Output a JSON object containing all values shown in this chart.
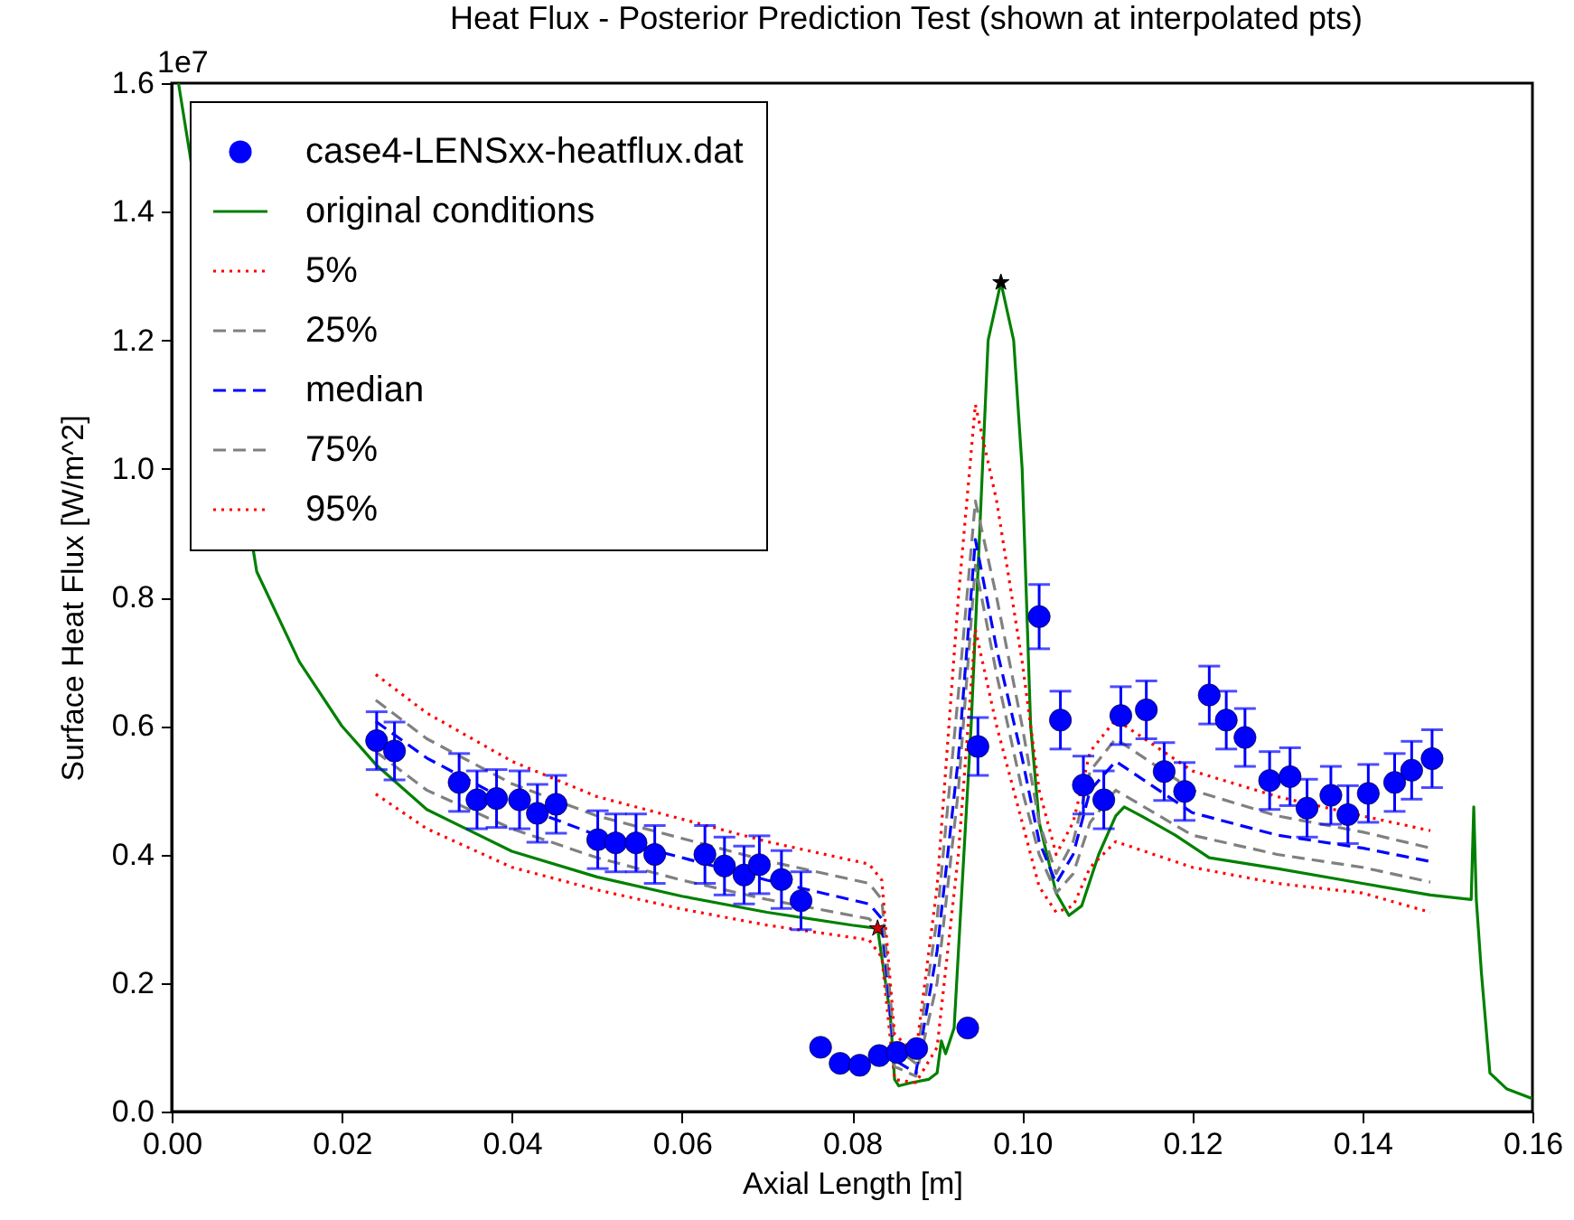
{
  "chart_data": {
    "type": "line",
    "title": "Heat Flux - Posterior Prediction Test (shown at interpolated pts)",
    "xlabel": "Axial Length [m]",
    "ylabel": "Surface Heat Flux [W/m^2]",
    "annotations": [
      "1e7"
    ],
    "xlim": [
      0,
      0.16
    ],
    "ylim": [
      0,
      1.6
    ],
    "xticks": [
      {
        "value": 0,
        "label": "0.00"
      },
      {
        "value": 0.02,
        "label": "0.02"
      },
      {
        "value": 0.04,
        "label": "0.04"
      },
      {
        "value": 0.06,
        "label": "0.06"
      },
      {
        "value": 0.08,
        "label": "0.08"
      },
      {
        "value": 0.1,
        "label": "0.10"
      },
      {
        "value": 0.12,
        "label": "0.12"
      },
      {
        "value": 0.14,
        "label": "0.14"
      },
      {
        "value": 0.16,
        "label": "0.16"
      }
    ],
    "yticks": [
      {
        "value": 0,
        "label": "0.0"
      },
      {
        "value": 0.2,
        "label": "0.2"
      },
      {
        "value": 0.4,
        "label": "0.4"
      },
      {
        "value": 0.6,
        "label": "0.6"
      },
      {
        "value": 0.8,
        "label": "0.8"
      },
      {
        "value": 1,
        "label": "1.0"
      },
      {
        "value": 1.2,
        "label": "1.2"
      },
      {
        "value": 1.4,
        "label": "1.4"
      },
      {
        "value": 1.6,
        "label": "1.6"
      }
    ],
    "grid": false,
    "legend": "top left",
    "series": [
      {
        "name": "case4-LENSxx-heatflux.dat",
        "type": "scatter",
        "marker": "circle",
        "color": "#0000ff",
        "x": [
          0.0241,
          0.0262,
          0.0338,
          0.0359,
          0.0382,
          0.0409,
          0.043,
          0.0452,
          0.0501,
          0.0522,
          0.0546,
          0.0568,
          0.0627,
          0.065,
          0.0673,
          0.0691,
          0.0717,
          0.074,
          0.0763,
          0.0786,
          0.0809,
          0.0832,
          0.0853,
          0.0876,
          0.0936,
          0.0948,
          0.102,
          0.1045,
          0.1072,
          0.1096,
          0.1116,
          0.1146,
          0.1167,
          0.1191,
          0.122,
          0.124,
          0.1262,
          0.1291,
          0.1315,
          0.1335,
          0.1363,
          0.1383,
          0.1407,
          0.1438,
          0.1458,
          0.1482
        ],
        "values": [
          0.577,
          0.561,
          0.512,
          0.485,
          0.487,
          0.485,
          0.464,
          0.478,
          0.423,
          0.418,
          0.418,
          0.4,
          0.4,
          0.382,
          0.368,
          0.384,
          0.361,
          0.328,
          0.1,
          0.075,
          0.072,
          0.087,
          0.092,
          0.098,
          0.13,
          0.568,
          0.77,
          0.609,
          0.508,
          0.485,
          0.616,
          0.625,
          0.529,
          0.498,
          0.648,
          0.609,
          0.582,
          0.515,
          0.521,
          0.472,
          0.492,
          0.462,
          0.495,
          0.512,
          0.531,
          0.549
        ],
        "errors": [
          0.045,
          0.045,
          0.045,
          0.045,
          0.045,
          0.045,
          0.045,
          0.045,
          0.045,
          0.045,
          0.045,
          0.045,
          0.045,
          0.045,
          0.045,
          0.045,
          0.045,
          0.045,
          null,
          null,
          null,
          null,
          null,
          null,
          null,
          0.045,
          0.05,
          0.045,
          0.045,
          0.045,
          0.045,
          0.045,
          0.045,
          0.045,
          0.045,
          0.045,
          0.045,
          0.045,
          0.045,
          0.045,
          0.045,
          0.045,
          0.045,
          0.045,
          0.045,
          0.045
        ]
      },
      {
        "name": "original conditions",
        "type": "line",
        "line_style": "solid",
        "color": "#008000",
        "x": [
          0.0008,
          0.01,
          0.015,
          0.02,
          0.024,
          0.03,
          0.04,
          0.05,
          0.06,
          0.07,
          0.08,
          0.083,
          0.0845,
          0.085,
          0.0855,
          0.087,
          0.089,
          0.09,
          0.0905,
          0.091,
          0.092,
          0.094,
          0.095,
          0.096,
          0.0975,
          0.099,
          0.1,
          0.101,
          0.102,
          0.104,
          0.1055,
          0.107,
          0.109,
          0.111,
          0.112,
          0.114,
          0.118,
          0.122,
          0.13,
          0.14,
          0.148,
          0.1528,
          0.1531,
          0.1534,
          0.154,
          0.155,
          0.157,
          0.16
        ],
        "values": [
          1.6,
          0.84,
          0.7,
          0.6,
          0.54,
          0.47,
          0.405,
          0.365,
          0.335,
          0.31,
          0.29,
          0.285,
          0.15,
          0.05,
          0.04,
          0.045,
          0.05,
          0.06,
          0.11,
          0.09,
          0.13,
          0.6,
          0.9,
          1.2,
          1.29,
          1.2,
          1.0,
          0.6,
          0.45,
          0.34,
          0.305,
          0.32,
          0.4,
          0.46,
          0.474,
          0.46,
          0.43,
          0.395,
          0.378,
          0.355,
          0.337,
          0.33,
          0.474,
          0.33,
          0.216,
          0.06,
          0.035,
          0.02
        ]
      },
      {
        "name": "5%",
        "type": "line",
        "line_style": "dotted",
        "color": "#ff0000",
        "x": [
          0.024,
          0.03,
          0.04,
          0.05,
          0.06,
          0.07,
          0.082,
          0.0835,
          0.085,
          0.0875,
          0.09,
          0.0925,
          0.0945,
          0.097,
          0.1,
          0.102,
          0.104,
          0.106,
          0.108,
          0.111,
          0.12,
          0.13,
          0.14,
          0.148
        ],
        "values": [
          0.494,
          0.44,
          0.38,
          0.345,
          0.315,
          0.29,
          0.267,
          0.24,
          0.05,
          0.045,
          0.1,
          0.4,
          0.75,
          0.6,
          0.45,
          0.35,
          0.31,
          0.32,
          0.38,
          0.42,
          0.38,
          0.355,
          0.34,
          0.31
        ]
      },
      {
        "name": "25%",
        "type": "line",
        "line_style": "dashed",
        "color": "#808080",
        "x": [
          0.024,
          0.03,
          0.04,
          0.05,
          0.06,
          0.07,
          0.082,
          0.0835,
          0.085,
          0.0875,
          0.09,
          0.0925,
          0.0945,
          0.097,
          0.1,
          0.102,
          0.104,
          0.106,
          0.108,
          0.111,
          0.12,
          0.13,
          0.14,
          0.148
        ],
        "values": [
          0.56,
          0.5,
          0.44,
          0.395,
          0.36,
          0.33,
          0.3,
          0.28,
          0.07,
          0.055,
          0.2,
          0.5,
          0.85,
          0.68,
          0.5,
          0.4,
          0.34,
          0.37,
          0.45,
          0.5,
          0.43,
          0.4,
          0.38,
          0.357
        ]
      },
      {
        "name": "median",
        "type": "line",
        "line_style": "dashed",
        "color": "#0000ff",
        "x": [
          0.024,
          0.03,
          0.04,
          0.05,
          0.06,
          0.07,
          0.082,
          0.0835,
          0.085,
          0.0875,
          0.09,
          0.0925,
          0.0945,
          0.097,
          0.1,
          0.102,
          0.104,
          0.106,
          0.108,
          0.111,
          0.12,
          0.13,
          0.14,
          0.148
        ],
        "values": [
          0.607,
          0.55,
          0.48,
          0.43,
          0.395,
          0.36,
          0.323,
          0.3,
          0.08,
          0.06,
          0.25,
          0.55,
          0.89,
          0.72,
          0.55,
          0.42,
          0.355,
          0.4,
          0.5,
          0.545,
          0.465,
          0.43,
          0.41,
          0.389
        ]
      },
      {
        "name": "75%",
        "type": "line",
        "line_style": "dashed",
        "color": "#808080",
        "x": [
          0.024,
          0.03,
          0.04,
          0.05,
          0.06,
          0.07,
          0.082,
          0.0835,
          0.085,
          0.0875,
          0.09,
          0.0925,
          0.0945,
          0.097,
          0.1,
          0.102,
          0.104,
          0.106,
          0.108,
          0.111,
          0.12,
          0.13,
          0.14,
          0.148
        ],
        "values": [
          0.64,
          0.58,
          0.51,
          0.46,
          0.425,
          0.39,
          0.355,
          0.33,
          0.1,
          0.075,
          0.3,
          0.65,
          0.95,
          0.8,
          0.6,
          0.45,
          0.37,
          0.42,
          0.53,
          0.58,
          0.5,
          0.46,
          0.435,
          0.41
        ]
      },
      {
        "name": "95%",
        "type": "line",
        "line_style": "dotted",
        "color": "#ff0000",
        "x": [
          0.024,
          0.03,
          0.04,
          0.05,
          0.06,
          0.07,
          0.082,
          0.0835,
          0.085,
          0.0875,
          0.09,
          0.0925,
          0.0945,
          0.097,
          0.1,
          0.102,
          0.104,
          0.106,
          0.108,
          0.111,
          0.12,
          0.13,
          0.14,
          0.148
        ],
        "values": [
          0.68,
          0.62,
          0.545,
          0.49,
          0.455,
          0.42,
          0.385,
          0.36,
          0.12,
          0.09,
          0.35,
          0.8,
          1.1,
          0.95,
          0.7,
          0.5,
          0.4,
          0.45,
          0.56,
          0.61,
          0.53,
          0.49,
          0.46,
          0.437
        ]
      },
      {
        "type": "scatter",
        "marker": "star",
        "color": "#cc0000",
        "x": [
          0.083
        ],
        "values": [
          0.285
        ]
      },
      {
        "type": "scatter",
        "marker": "star",
        "color": "#000000",
        "x": [
          0.0975
        ],
        "values": [
          1.29
        ]
      }
    ]
  }
}
